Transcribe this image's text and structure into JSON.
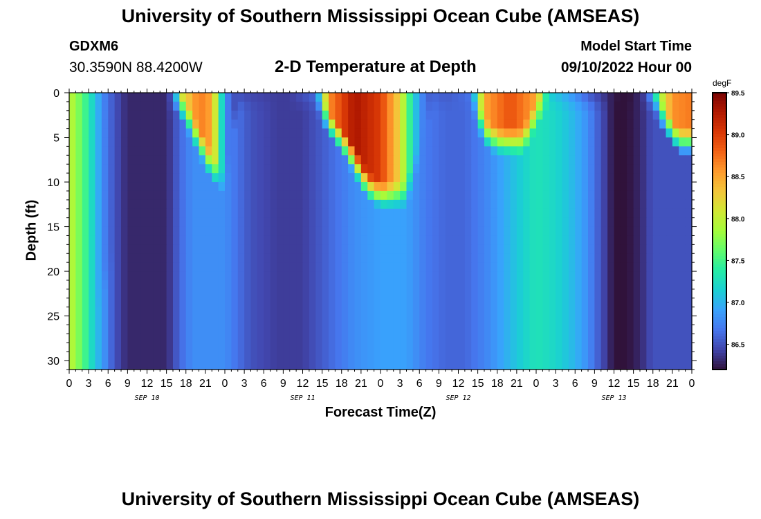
{
  "header": {
    "title": "University of Southern Mississippi Ocean Cube (AMSEAS)",
    "station": "GDXM6",
    "coords": "30.3590N  88.4200W",
    "subtitle": "2-D Temperature at Depth",
    "model_start_label": "Model Start Time",
    "model_start_value": "09/10/2022 Hour 00"
  },
  "footer": {
    "title_repeat": "University of Southern Mississippi Ocean Cube (AMSEAS)"
  },
  "colors": {
    "colormap": [
      "#30123b",
      "#4145ab",
      "#4675ed",
      "#39a2fc",
      "#1bcfd4",
      "#24eca6",
      "#61fc6c",
      "#a4fc3b",
      "#d1e834",
      "#f3c63a",
      "#fe9b2d",
      "#f36315",
      "#d93806",
      "#b11901",
      "#7a0402"
    ]
  },
  "chart_data": {
    "type": "heatmap",
    "title": "2-D Temperature at Depth",
    "xlabel": "Forecast Time(Z)",
    "ylabel": "Depth (ft)",
    "colorbar_label": "degF",
    "x_tick_labels": [
      "0",
      "3",
      "6",
      "9",
      "12",
      "15",
      "18",
      "21",
      "0",
      "3",
      "6",
      "9",
      "12",
      "15",
      "18",
      "21",
      "0",
      "3",
      "6",
      "9",
      "12",
      "15",
      "18",
      "21",
      "0",
      "3",
      "6",
      "9",
      "12",
      "15",
      "18",
      "21",
      "0"
    ],
    "x_hours_range": [
      0,
      96
    ],
    "day_labels": [
      {
        "label": "SEP 10",
        "hour": 12
      },
      {
        "label": "SEP 11",
        "hour": 36
      },
      {
        "label": "SEP 12",
        "hour": 60
      },
      {
        "label": "SEP 13",
        "hour": 84
      }
    ],
    "y_ticks": [
      0,
      5,
      10,
      15,
      20,
      25,
      30
    ],
    "y_range": [
      0,
      31
    ],
    "y_inverted": true,
    "colorbar_ticks": [
      "89.5",
      "89.0",
      "88.5",
      "88.0",
      "87.5",
      "87.0",
      "86.5"
    ],
    "colorbar_range": [
      86.2,
      89.5
    ],
    "surface_profile": [
      {
        "hour": 0,
        "value": 88.0
      },
      {
        "hour": 2,
        "value": 87.6
      },
      {
        "hour": 4,
        "value": 87.1
      },
      {
        "hour": 5,
        "value": 86.8
      },
      {
        "hour": 7,
        "value": 86.5
      },
      {
        "hour": 9,
        "value": 86.3
      },
      {
        "hour": 15,
        "value": 86.3
      },
      {
        "hour": 16,
        "value": 86.6
      },
      {
        "hour": 17,
        "value": 88.0
      },
      {
        "hour": 20,
        "value": 88.7
      },
      {
        "hour": 22,
        "value": 88.5
      },
      {
        "hour": 24,
        "value": 86.8
      },
      {
        "hour": 26,
        "value": 86.4
      },
      {
        "hour": 34,
        "value": 86.4
      },
      {
        "hour": 38,
        "value": 86.7
      },
      {
        "hour": 40,
        "value": 88.6
      },
      {
        "hour": 44,
        "value": 89.3
      },
      {
        "hour": 48,
        "value": 89.0
      },
      {
        "hour": 51,
        "value": 88.2
      },
      {
        "hour": 53,
        "value": 87.2
      },
      {
        "hour": 55,
        "value": 86.6
      },
      {
        "hour": 58,
        "value": 86.5
      },
      {
        "hour": 62,
        "value": 86.7
      },
      {
        "hour": 64,
        "value": 88.5
      },
      {
        "hour": 68,
        "value": 88.9
      },
      {
        "hour": 72,
        "value": 88.5
      },
      {
        "hour": 74,
        "value": 87.1
      },
      {
        "hour": 77,
        "value": 86.8
      },
      {
        "hour": 80,
        "value": 86.4
      },
      {
        "hour": 83,
        "value": 86.3
      },
      {
        "hour": 85,
        "value": 86.2
      },
      {
        "hour": 87,
        "value": 86.2
      },
      {
        "hour": 89,
        "value": 86.5
      },
      {
        "hour": 90,
        "value": 87.4
      },
      {
        "hour": 93,
        "value": 88.6
      },
      {
        "hour": 96,
        "value": 88.7
      }
    ],
    "bottom_profile": [
      {
        "hour": 0,
        "value": 88.0
      },
      {
        "hour": 2,
        "value": 87.6
      },
      {
        "hour": 4,
        "value": 87.1
      },
      {
        "hour": 5,
        "value": 86.9
      },
      {
        "hour": 7,
        "value": 86.5
      },
      {
        "hour": 9,
        "value": 86.3
      },
      {
        "hour": 15,
        "value": 86.3
      },
      {
        "hour": 17,
        "value": 86.6
      },
      {
        "hour": 19,
        "value": 86.8
      },
      {
        "hour": 24,
        "value": 86.8
      },
      {
        "hour": 28,
        "value": 86.5
      },
      {
        "hour": 32,
        "value": 86.4
      },
      {
        "hour": 36,
        "value": 86.4
      },
      {
        "hour": 40,
        "value": 86.6
      },
      {
        "hour": 44,
        "value": 86.8
      },
      {
        "hour": 48,
        "value": 86.9
      },
      {
        "hour": 52,
        "value": 86.9
      },
      {
        "hour": 55,
        "value": 86.7
      },
      {
        "hour": 58,
        "value": 86.6
      },
      {
        "hour": 61,
        "value": 86.6
      },
      {
        "hour": 65,
        "value": 86.8
      },
      {
        "hour": 69,
        "value": 87.1
      },
      {
        "hour": 72,
        "value": 87.3
      },
      {
        "hour": 75,
        "value": 87.2
      },
      {
        "hour": 78,
        "value": 87.0
      },
      {
        "hour": 80,
        "value": 86.8
      },
      {
        "hour": 82,
        "value": 86.5
      },
      {
        "hour": 84,
        "value": 86.2
      },
      {
        "hour": 86,
        "value": 86.2
      },
      {
        "hour": 88,
        "value": 86.3
      },
      {
        "hour": 90,
        "value": 86.5
      },
      {
        "hour": 93,
        "value": 86.5
      },
      {
        "hour": 96,
        "value": 86.5
      }
    ],
    "thermocline_depth_ft": [
      {
        "hour": 0,
        "depth": 31
      },
      {
        "hour": 16,
        "depth": 0
      },
      {
        "hour": 18,
        "depth": 2
      },
      {
        "hour": 20,
        "depth": 5
      },
      {
        "hour": 22,
        "depth": 8
      },
      {
        "hour": 24,
        "depth": 10
      },
      {
        "hour": 26,
        "depth": 0
      },
      {
        "hour": 38,
        "depth": 0
      },
      {
        "hour": 40,
        "depth": 3
      },
      {
        "hour": 43,
        "depth": 6
      },
      {
        "hour": 46,
        "depth": 10
      },
      {
        "hour": 48,
        "depth": 11
      },
      {
        "hour": 52,
        "depth": 11
      },
      {
        "hour": 54,
        "depth": 6
      },
      {
        "hour": 56,
        "depth": 0
      },
      {
        "hour": 62,
        "depth": 0
      },
      {
        "hour": 64,
        "depth": 4
      },
      {
        "hour": 66,
        "depth": 5
      },
      {
        "hour": 70,
        "depth": 5
      },
      {
        "hour": 72,
        "depth": 2
      },
      {
        "hour": 74,
        "depth": 0
      },
      {
        "hour": 90,
        "depth": 0
      },
      {
        "hour": 92,
        "depth": 3
      },
      {
        "hour": 94,
        "depth": 5
      },
      {
        "hour": 96,
        "depth": 5
      }
    ]
  }
}
